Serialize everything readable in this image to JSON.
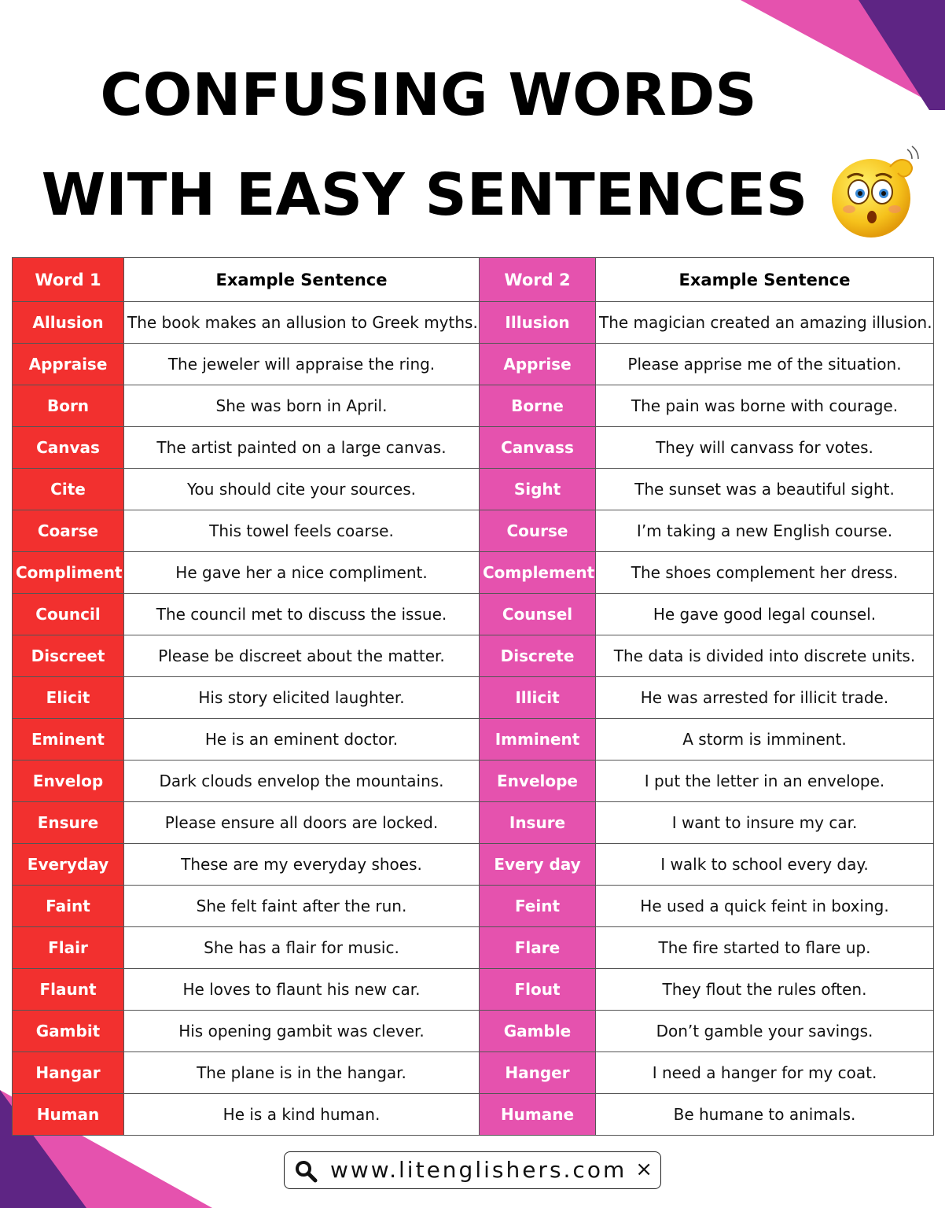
{
  "title": {
    "line1": "CONFUSING WORDS",
    "line2": "WITH EASY SENTENCES"
  },
  "colors": {
    "word1_bg": "#f2302f",
    "word2_bg": "#e552ae",
    "corner_purple": "#5e2584",
    "corner_pink": "#e552ae"
  },
  "table": {
    "headers": {
      "word1": "Word 1",
      "sentence1": "Example Sentence",
      "word2": "Word 2",
      "sentence2": "Example Sentence"
    },
    "rows": [
      {
        "w1": "Allusion",
        "s1": "The book makes an allusion to Greek myths.",
        "w2": "Illusion",
        "s2": "The magician created an amazing illusion."
      },
      {
        "w1": "Appraise",
        "s1": "The jeweler will appraise the ring.",
        "w2": "Apprise",
        "s2": "Please apprise me of the situation."
      },
      {
        "w1": "Born",
        "s1": "She was born in April.",
        "w2": "Borne",
        "s2": "The pain was borne with courage."
      },
      {
        "w1": "Canvas",
        "s1": "The artist painted on a large canvas.",
        "w2": "Canvass",
        "s2": "They will canvass for votes."
      },
      {
        "w1": "Cite",
        "s1": "You should cite your sources.",
        "w2": "Sight",
        "s2": "The sunset was a beautiful sight."
      },
      {
        "w1": "Coarse",
        "s1": "This towel feels coarse.",
        "w2": "Course",
        "s2": "I’m taking a new English course."
      },
      {
        "w1": "Compliment",
        "s1": "He gave her a nice compliment.",
        "w2": "Complement",
        "s2": "The shoes complement her dress."
      },
      {
        "w1": "Council",
        "s1": "The council met to discuss the issue.",
        "w2": "Counsel",
        "s2": "He gave good legal counsel."
      },
      {
        "w1": "Discreet",
        "s1": "Please be discreet about the matter.",
        "w2": "Discrete",
        "s2": "The data is divided into discrete units."
      },
      {
        "w1": "Elicit",
        "s1": "His story elicited laughter.",
        "w2": "Illicit",
        "s2": "He was arrested for illicit trade."
      },
      {
        "w1": "Eminent",
        "s1": "He is an eminent doctor.",
        "w2": "Imminent",
        "s2": "A storm is imminent."
      },
      {
        "w1": "Envelop",
        "s1": "Dark clouds envelop the mountains.",
        "w2": "Envelope",
        "s2": "I put the letter in an envelope."
      },
      {
        "w1": "Ensure",
        "s1": "Please ensure all doors are locked.",
        "w2": "Insure",
        "s2": "I want to insure my car."
      },
      {
        "w1": "Everyday",
        "s1": "These are my everyday shoes.",
        "w2": "Every day",
        "s2": "I walk to school every day."
      },
      {
        "w1": "Faint",
        "s1": "She felt faint after the run.",
        "w2": "Feint",
        "s2": "He used a quick feint in boxing."
      },
      {
        "w1": "Flair",
        "s1": "She has a flair for music.",
        "w2": "Flare",
        "s2": "The fire started to flare up."
      },
      {
        "w1": "Flaunt",
        "s1": "He loves to flaunt his new car.",
        "w2": "Flout",
        "s2": "They flout the rules often."
      },
      {
        "w1": "Gambit",
        "s1": "His opening gambit was clever.",
        "w2": "Gamble",
        "s2": "Don’t gamble your savings."
      },
      {
        "w1": "Hangar",
        "s1": "The plane is in the hangar.",
        "w2": "Hanger",
        "s2": "I need a hanger for my coat."
      },
      {
        "w1": "Human",
        "s1": "He is a kind human.",
        "w2": "Humane",
        "s2": "Be humane to animals."
      }
    ]
  },
  "footer": {
    "url": "www.litenglishers.com",
    "close_glyph": "×",
    "search_icon": "search-icon"
  }
}
